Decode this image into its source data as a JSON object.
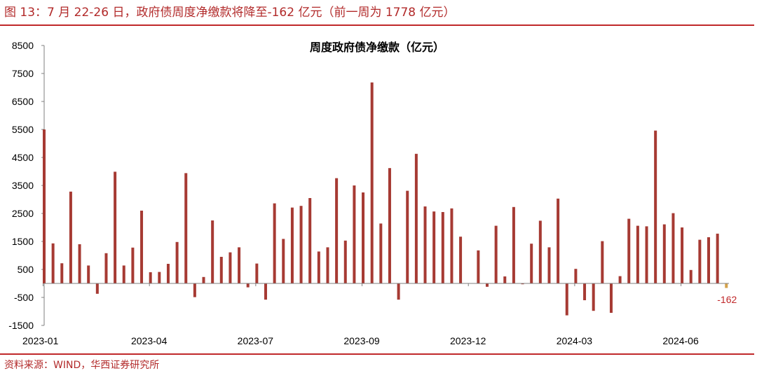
{
  "figure": {
    "caption": "图 13：7 月 22-26 日，政府债周度净缴款将降至-162 亿元（前一周为 1778 亿元）",
    "source": "资料来源：WIND，华西证券研究所"
  },
  "colors": {
    "bar": "#a63a33",
    "last_bar": "#d4a24a",
    "accent": "#c0282a"
  },
  "chart_data": {
    "type": "bar",
    "title": "周度政府债净缴款（亿元）",
    "xlabel": "",
    "ylabel": "",
    "ylim": [
      -1500,
      8500
    ],
    "yticks": [
      8500,
      7500,
      6500,
      5500,
      4500,
      3500,
      2500,
      1500,
      500,
      -500,
      -1500
    ],
    "ytick_labels": [
      "8500",
      "7500",
      "6500",
      "5500",
      "4500",
      "3500",
      "2500",
      "1500",
      "500",
      "-500",
      "-1500"
    ],
    "xtick_labels": [
      "2023-01",
      "2023-04",
      "2023-07",
      "2023-09",
      "2023-12",
      "2024-03",
      "2024-06"
    ],
    "xtick_positions": [
      0,
      12,
      24,
      36,
      48,
      60,
      72
    ],
    "values": [
      5500,
      1430,
      720,
      3280,
      1400,
      640,
      -370,
      1080,
      3990,
      640,
      1280,
      2600,
      400,
      410,
      700,
      1480,
      3940,
      -490,
      230,
      2250,
      950,
      1110,
      1290,
      -140,
      710,
      -580,
      2860,
      1590,
      2710,
      2770,
      3050,
      1140,
      1290,
      3760,
      1530,
      3500,
      3250,
      7180,
      2140,
      4120,
      -580,
      3310,
      4630,
      2750,
      2570,
      2550,
      2680,
      1670,
      -10,
      1180,
      -120,
      2060,
      250,
      2730,
      -30,
      1420,
      2240,
      1290,
      3030,
      -1140,
      520,
      -600,
      -980,
      1510,
      -1050,
      260,
      2310,
      2060,
      2040,
      5460,
      2110,
      2510,
      2000,
      480,
      1560,
      1650,
      1778,
      -162
    ],
    "annotation": {
      "text": "-162",
      "index": 77
    }
  }
}
